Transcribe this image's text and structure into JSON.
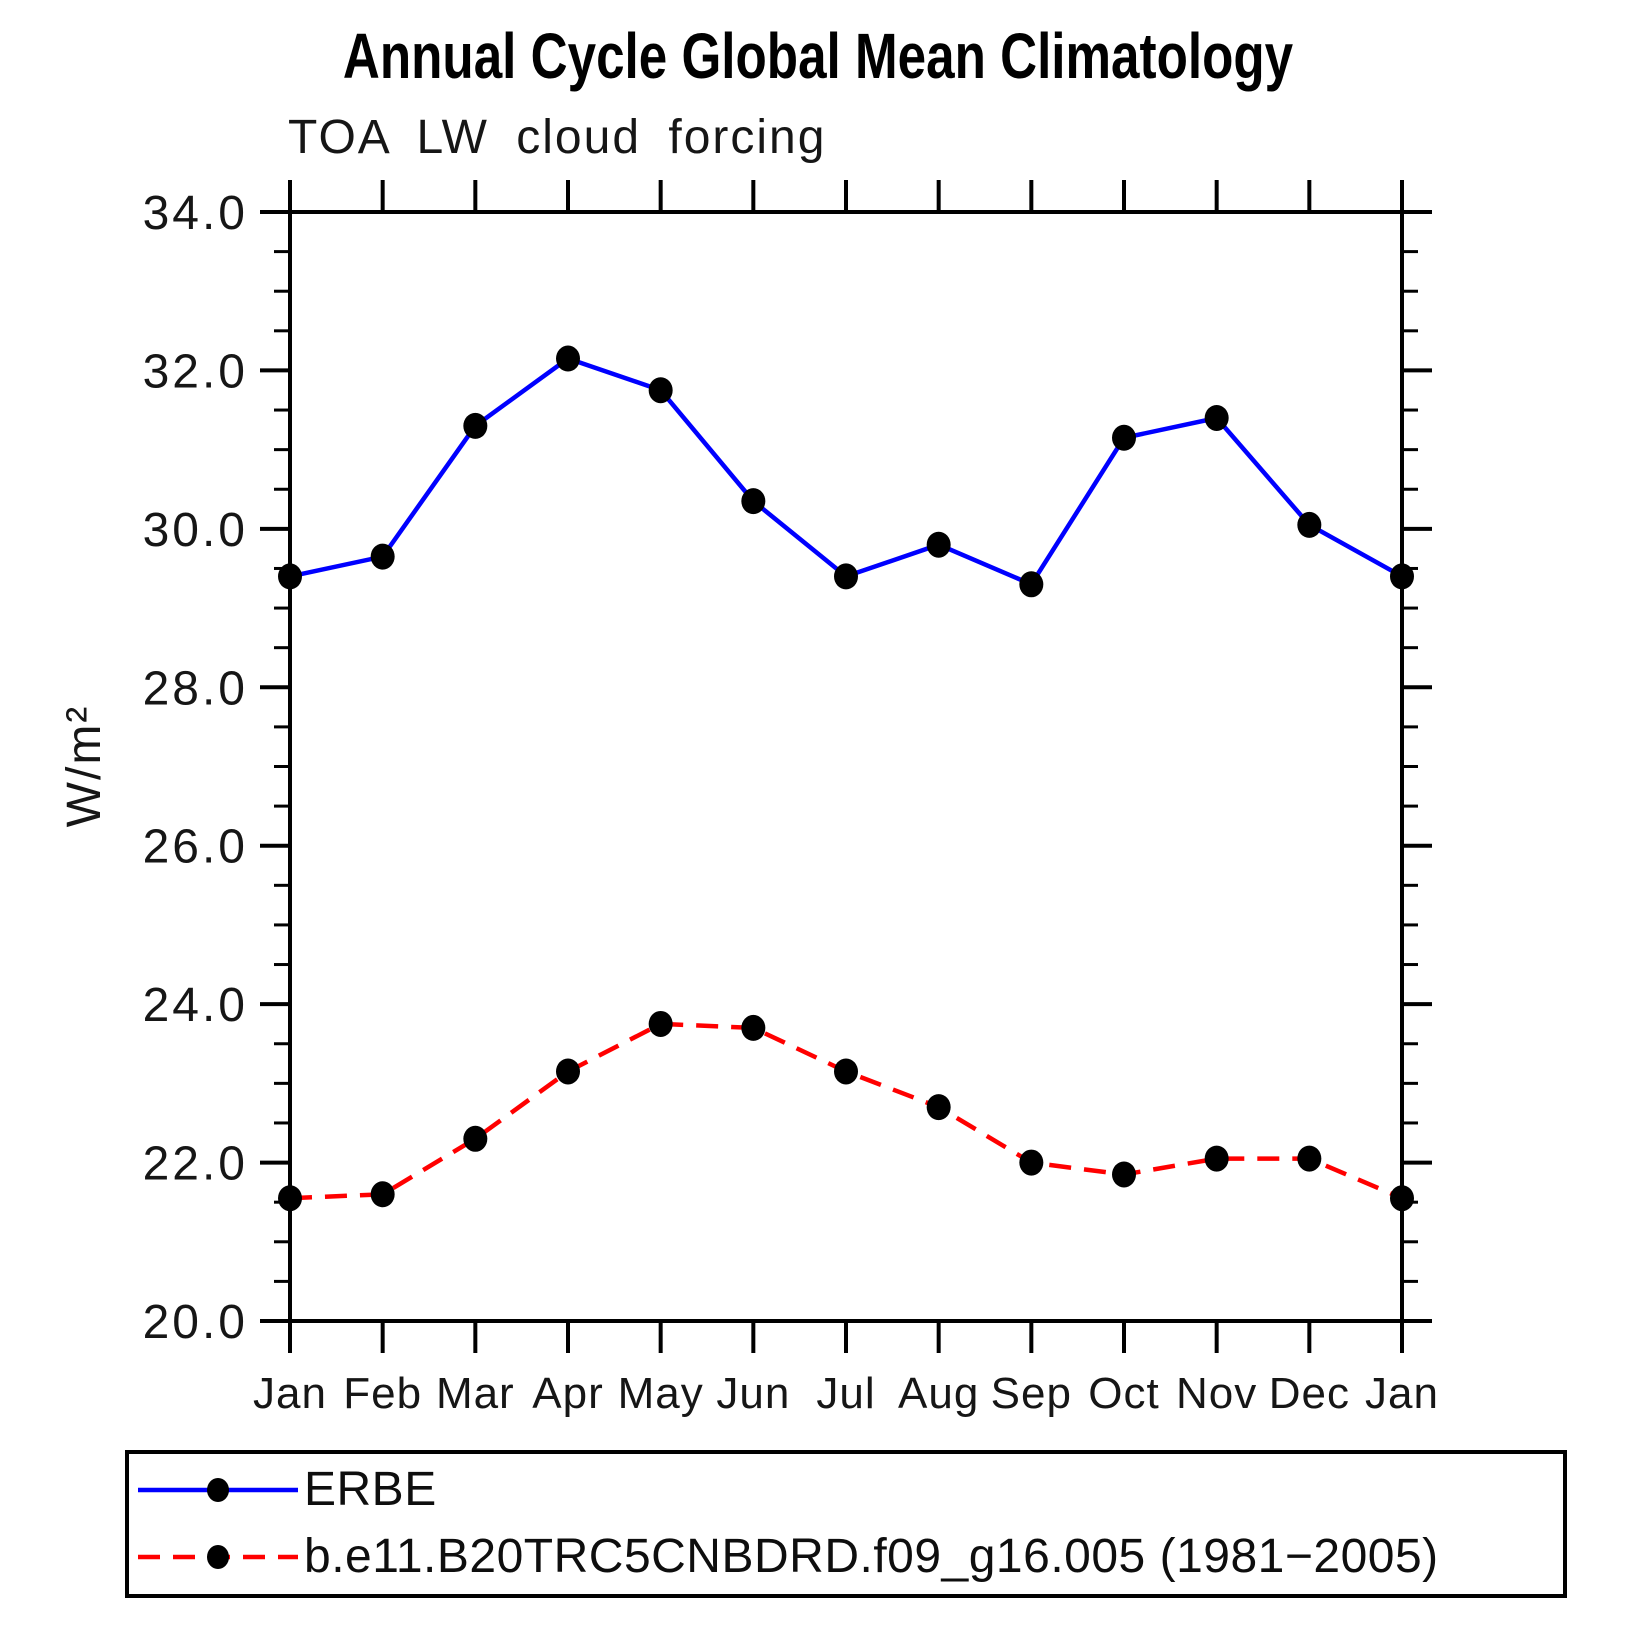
{
  "title": "Annual Cycle Global Mean Climatology",
  "subtitle": "TOA LW cloud forcing",
  "y_axis": {
    "label": "W/m²",
    "tick_labels": [
      "20.0",
      "22.0",
      "24.0",
      "26.0",
      "28.0",
      "30.0",
      "32.0",
      "34.0"
    ]
  },
  "x_axis": {
    "tick_labels": [
      "Jan",
      "Feb",
      "Mar",
      "Apr",
      "May",
      "Jun",
      "Jul",
      "Aug",
      "Sep",
      "Oct",
      "Nov",
      "Dec",
      "Jan"
    ]
  },
  "legend": {
    "items": [
      {
        "label": "ERBE",
        "color": "#0000ff",
        "style": "solid",
        "marker": "filled-circle"
      },
      {
        "label": "b.e11.B20TRC5CNBDRD.f09_g16.005 (1981−2005)",
        "color": "#ff0000",
        "style": "dashed",
        "marker": "filled-circle"
      }
    ]
  },
  "chart_data": {
    "type": "line",
    "title": "Annual Cycle Global Mean Climatology",
    "subtitle": "TOA LW cloud forcing",
    "ylabel": "W/m²",
    "x": [
      "Jan",
      "Feb",
      "Mar",
      "Apr",
      "May",
      "Jun",
      "Jul",
      "Aug",
      "Sep",
      "Oct",
      "Nov",
      "Dec",
      "Jan"
    ],
    "series": [
      {
        "name": "ERBE",
        "color": "#0000ff",
        "line_style": "solid",
        "marker": "filled-circle",
        "marker_color": "#000000",
        "values": [
          29.4,
          29.65,
          31.3,
          32.15,
          31.75,
          30.35,
          29.4,
          29.8,
          29.3,
          31.15,
          31.4,
          30.05,
          29.4
        ]
      },
      {
        "name": "b.e11.B20TRC5CNBDRD.f09_g16.005 (1981−2005)",
        "color": "#ff0000",
        "line_style": "dashed",
        "marker": "filled-circle",
        "marker_color": "#000000",
        "values": [
          21.55,
          21.6,
          22.3,
          23.15,
          23.75,
          23.7,
          23.15,
          22.7,
          22.0,
          21.85,
          22.05,
          22.05,
          21.55
        ]
      }
    ],
    "ylim": [
      20.0,
      34.0
    ],
    "y_major_step": 2.0,
    "y_minor_step": 0.5,
    "grid": false,
    "legend_position": "bottom"
  }
}
